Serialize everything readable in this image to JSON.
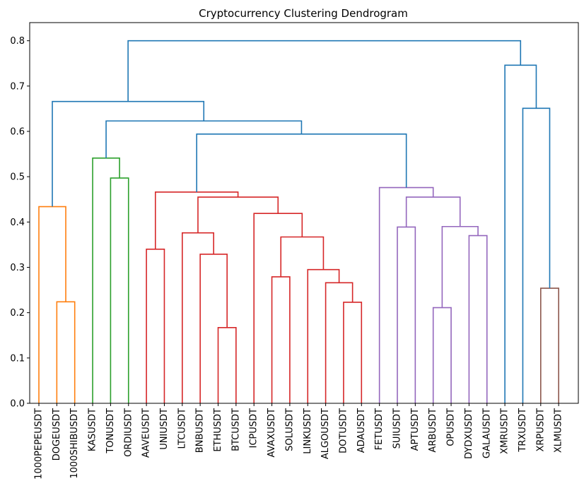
{
  "chart_data": {
    "type": "dendrogram",
    "title": "Cryptocurrency Clustering Dendrogram",
    "xlabel": "",
    "ylabel": "",
    "ylim": [
      0,
      0.84
    ],
    "yticks": [
      0.0,
      0.1,
      0.2,
      0.3,
      0.4,
      0.5,
      0.6,
      0.7,
      0.8
    ],
    "ytick_labels": [
      "0.0",
      "0.1",
      "0.2",
      "0.3",
      "0.4",
      "0.5",
      "0.6",
      "0.7",
      "0.8"
    ],
    "grid": false,
    "leaves": [
      "1000PEPEUSDT",
      "DOGEUSDT",
      "1000SHIBUSDT",
      "KASUSDT",
      "TONUSDT",
      "ORDIUSDT",
      "AAVEUSDT",
      "UNIUSDT",
      "LTCUSDT",
      "BNBUSDT",
      "ETHUSDT",
      "BTCUSDT",
      "ICPUSDT",
      "AVAXUSDT",
      "SOLUSDT",
      "LINKUSDT",
      "ALGOUSDT",
      "DOTUSDT",
      "ADAUSDT",
      "FETUSDT",
      "SUIUSDT",
      "APTUSDT",
      "ARBUSDT",
      "OPUSDT",
      "DYDXUSDT",
      "GALAUSDT",
      "XMRUSDT",
      "TRXUSDT",
      "XRPUSDT",
      "XLMUSDT"
    ],
    "colors": {
      "orange": "#ff7f0e",
      "green": "#2ca02c",
      "red": "#d62728",
      "purple": "#9467bd",
      "brown": "#8c564b",
      "blue": "#1f77b4"
    },
    "merges": [
      {
        "id": "n1",
        "left": "L1",
        "right": "L2",
        "height": 0.224,
        "color": "orange"
      },
      {
        "id": "n2",
        "left": "L0",
        "right": "n1",
        "height": 0.434,
        "color": "orange"
      },
      {
        "id": "n3",
        "left": "L4",
        "right": "L5",
        "height": 0.497,
        "color": "green"
      },
      {
        "id": "n4",
        "left": "L3",
        "right": "n3",
        "height": 0.541,
        "color": "green"
      },
      {
        "id": "n5",
        "left": "L6",
        "right": "L7",
        "height": 0.34,
        "color": "red"
      },
      {
        "id": "n6",
        "left": "L10",
        "right": "L11",
        "height": 0.167,
        "color": "red"
      },
      {
        "id": "n7",
        "left": "L9",
        "right": "n6",
        "height": 0.329,
        "color": "red"
      },
      {
        "id": "n8",
        "left": "L8",
        "right": "n7",
        "height": 0.376,
        "color": "red"
      },
      {
        "id": "n9",
        "left": "L13",
        "right": "L14",
        "height": 0.279,
        "color": "red"
      },
      {
        "id": "n10",
        "left": "L17",
        "right": "L18",
        "height": 0.223,
        "color": "red"
      },
      {
        "id": "n11",
        "left": "L16",
        "right": "n10",
        "height": 0.266,
        "color": "red"
      },
      {
        "id": "n12",
        "left": "L15",
        "right": "n11",
        "height": 0.295,
        "color": "red"
      },
      {
        "id": "n13",
        "left": "n9",
        "right": "n12",
        "height": 0.367,
        "color": "red"
      },
      {
        "id": "n14",
        "left": "L12",
        "right": "n13",
        "height": 0.419,
        "color": "red"
      },
      {
        "id": "n15",
        "left": "n8",
        "right": "n14",
        "height": 0.455,
        "color": "red"
      },
      {
        "id": "n16",
        "left": "n5",
        "right": "n15",
        "height": 0.466,
        "color": "red"
      },
      {
        "id": "n17",
        "left": "L22",
        "right": "L23",
        "height": 0.211,
        "color": "purple"
      },
      {
        "id": "n18",
        "left": "L24",
        "right": "L25",
        "height": 0.37,
        "color": "purple"
      },
      {
        "id": "n19",
        "left": "n17",
        "right": "n18",
        "height": 0.39,
        "color": "purple"
      },
      {
        "id": "n20",
        "left": "L20",
        "right": "L21",
        "height": 0.389,
        "color": "purple"
      },
      {
        "id": "n21",
        "left": "n20",
        "right": "n19",
        "height": 0.455,
        "color": "purple"
      },
      {
        "id": "n22",
        "left": "L19",
        "right": "n21",
        "height": 0.476,
        "color": "purple"
      },
      {
        "id": "n23",
        "left": "n16",
        "right": "n22",
        "height": 0.594,
        "color": "blue"
      },
      {
        "id": "n24",
        "left": "n4",
        "right": "n23",
        "height": 0.623,
        "color": "blue"
      },
      {
        "id": "n25",
        "left": "n2",
        "right": "n24",
        "height": 0.666,
        "color": "blue"
      },
      {
        "id": "n26",
        "left": "L28",
        "right": "L29",
        "height": 0.254,
        "color": "brown"
      },
      {
        "id": "n27",
        "left": "L27",
        "right": "n26",
        "height": 0.651,
        "color": "blue"
      },
      {
        "id": "n28",
        "left": "L26",
        "right": "n27",
        "height": 0.746,
        "color": "blue"
      },
      {
        "id": "n29",
        "left": "n25",
        "right": "n28",
        "height": 0.8,
        "color": "blue"
      }
    ]
  }
}
